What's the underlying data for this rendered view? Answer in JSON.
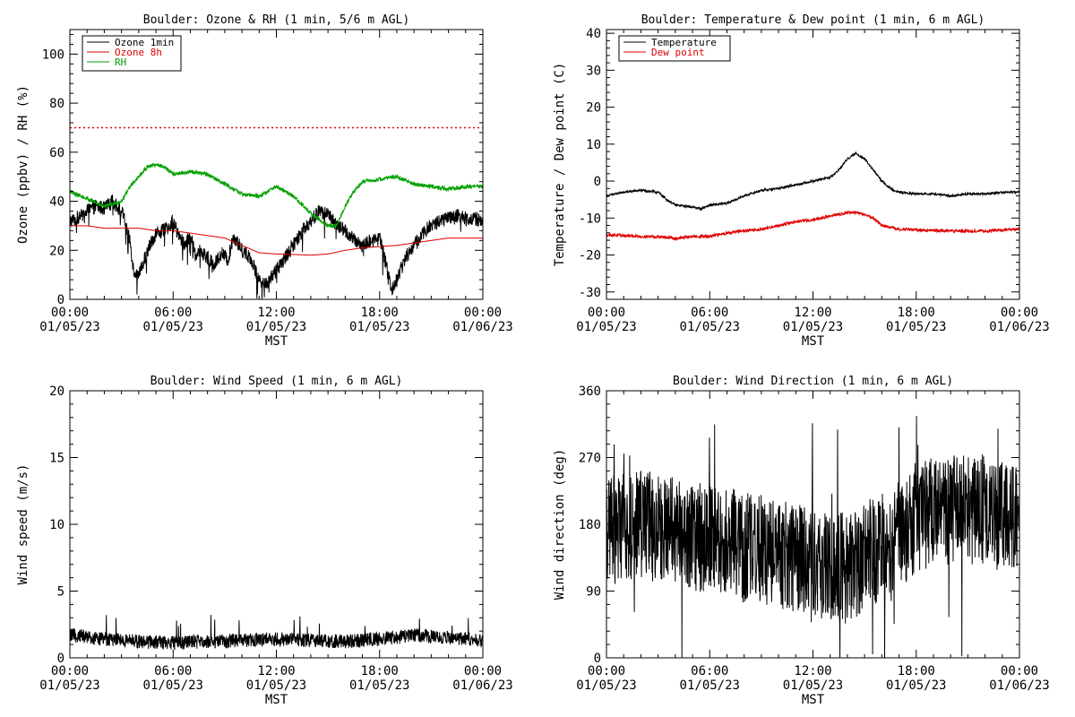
{
  "page": {
    "background": "#ffffff",
    "colors": {
      "black": "#000000",
      "red": "#e00000",
      "green": "#00a000"
    }
  },
  "chart_data": [
    {
      "id": "ozone-rh",
      "type": "line",
      "title": "Boulder: Ozone & RH (1 min, 5/6 m AGL)",
      "xlabel": "MST",
      "ylabel": "Ozone (ppbv) / RH (%)",
      "ylim": [
        0,
        110
      ],
      "yticks": [
        0,
        20,
        40,
        60,
        80,
        100
      ],
      "xlim": [
        "01/05/23 00:00",
        "01/06/23 00:00"
      ],
      "xticks": [
        {
          "time": "00:00",
          "date": "01/05/23"
        },
        {
          "time": "06:00",
          "date": "01/05/23"
        },
        {
          "time": "12:00",
          "date": "01/05/23"
        },
        {
          "time": "18:00",
          "date": "01/05/23"
        },
        {
          "time": "00:00",
          "date": "01/06/23"
        }
      ],
      "legend": {
        "placement": "top-left"
      },
      "reference_line": {
        "y": 70,
        "color": "#e00000",
        "style": "dotted"
      },
      "series": [
        {
          "name": "Ozone 1min",
          "color": "#000000",
          "noise": 3,
          "points": [
            [
              0,
              32
            ],
            [
              0.5,
              33
            ],
            [
              1,
              36
            ],
            [
              1.5,
              38
            ],
            [
              2,
              37
            ],
            [
              2.5,
              40
            ],
            [
              3,
              36
            ],
            [
              3.2,
              32
            ],
            [
              3.5,
              24
            ],
            [
              3.7,
              12
            ],
            [
              4,
              9
            ],
            [
              4.5,
              20
            ],
            [
              5,
              27
            ],
            [
              5.5,
              28
            ],
            [
              6,
              32
            ],
            [
              6.3,
              26
            ],
            [
              6.7,
              22
            ],
            [
              7,
              27
            ],
            [
              7.3,
              18
            ],
            [
              7.6,
              20
            ],
            [
              8,
              17
            ],
            [
              8.4,
              14
            ],
            [
              8.8,
              19
            ],
            [
              9.2,
              16
            ],
            [
              9.5,
              26
            ],
            [
              10,
              20
            ],
            [
              10.5,
              17
            ],
            [
              11,
              8
            ],
            [
              11.5,
              7
            ],
            [
              12,
              12
            ],
            [
              12.5,
              17
            ],
            [
              13,
              22
            ],
            [
              13.5,
              28
            ],
            [
              14,
              32
            ],
            [
              14.5,
              36
            ],
            [
              15,
              35
            ],
            [
              15.5,
              30
            ],
            [
              16,
              28
            ],
            [
              16.5,
              24
            ],
            [
              17,
              22
            ],
            [
              17.5,
              24
            ],
            [
              18,
              25
            ],
            [
              18.2,
              20
            ],
            [
              18.5,
              10
            ],
            [
              18.7,
              4
            ],
            [
              19,
              8
            ],
            [
              19.5,
              17
            ],
            [
              20,
              22
            ],
            [
              20.5,
              27
            ],
            [
              21,
              30
            ],
            [
              21.5,
              32
            ],
            [
              22,
              33
            ],
            [
              22.5,
              34
            ],
            [
              23,
              33
            ],
            [
              23.5,
              33
            ],
            [
              24,
              32
            ]
          ]
        },
        {
          "name": "Ozone 8h",
          "color": "#e00000",
          "noise": 0,
          "points": [
            [
              0,
              30
            ],
            [
              1,
              30
            ],
            [
              2,
              29
            ],
            [
              3,
              29
            ],
            [
              4,
              29
            ],
            [
              5,
              28
            ],
            [
              6,
              28
            ],
            [
              7,
              27
            ],
            [
              8,
              26
            ],
            [
              9,
              25
            ],
            [
              10,
              22
            ],
            [
              11,
              19
            ],
            [
              12,
              18.5
            ],
            [
              13,
              18.3
            ],
            [
              14,
              18
            ],
            [
              15,
              18.5
            ],
            [
              16,
              20
            ],
            [
              17,
              21
            ],
            [
              18,
              21.5
            ],
            [
              19,
              22
            ],
            [
              20,
              23
            ],
            [
              21,
              24
            ],
            [
              22,
              25
            ],
            [
              23,
              25
            ],
            [
              24,
              25
            ]
          ]
        },
        {
          "name": "RH",
          "color": "#00a000",
          "noise": 0.8,
          "points": [
            [
              0,
              44
            ],
            [
              1,
              41
            ],
            [
              2,
              38
            ],
            [
              3,
              40
            ],
            [
              3.5,
              46
            ],
            [
              4,
              50
            ],
            [
              4.5,
              54
            ],
            [
              5,
              55
            ],
            [
              5.5,
              54
            ],
            [
              6,
              51
            ],
            [
              7,
              52
            ],
            [
              8,
              51
            ],
            [
              9,
              47
            ],
            [
              10,
              43
            ],
            [
              11,
              42
            ],
            [
              12,
              46
            ],
            [
              13,
              42
            ],
            [
              14,
              35
            ],
            [
              15,
              30
            ],
            [
              15.5,
              30
            ],
            [
              16,
              38
            ],
            [
              16.5,
              44
            ],
            [
              17,
              48
            ],
            [
              18,
              49
            ],
            [
              19,
              50
            ],
            [
              20,
              47
            ],
            [
              21,
              46
            ],
            [
              22,
              45
            ],
            [
              23,
              46
            ],
            [
              24,
              46
            ]
          ]
        }
      ]
    },
    {
      "id": "temperature",
      "type": "line",
      "title": "Boulder: Temperature & Dew point (1 min, 6 m AGL)",
      "xlabel": "MST",
      "ylabel": "Temperature / Dew point (C)",
      "ylim": [
        -32,
        41
      ],
      "yticks": [
        -30,
        -20,
        -10,
        0,
        10,
        20,
        30,
        40
      ],
      "xlim": [
        "01/05/23 00:00",
        "01/06/23 00:00"
      ],
      "xticks": [
        {
          "time": "00:00",
          "date": "01/05/23"
        },
        {
          "time": "06:00",
          "date": "01/05/23"
        },
        {
          "time": "12:00",
          "date": "01/05/23"
        },
        {
          "time": "18:00",
          "date": "01/05/23"
        },
        {
          "time": "00:00",
          "date": "01/06/23"
        }
      ],
      "legend": {
        "placement": "top-left"
      },
      "series": [
        {
          "name": "Temperature",
          "color": "#000000",
          "noise": 0.3,
          "points": [
            [
              0,
              -4
            ],
            [
              1,
              -3
            ],
            [
              2,
              -2.5
            ],
            [
              3,
              -3
            ],
            [
              3.5,
              -5
            ],
            [
              4,
              -6.5
            ],
            [
              5,
              -7
            ],
            [
              5.5,
              -7.5
            ],
            [
              6,
              -6.5
            ],
            [
              7,
              -6
            ],
            [
              8,
              -4
            ],
            [
              9,
              -2.5
            ],
            [
              10,
              -2
            ],
            [
              11,
              -1
            ],
            [
              12,
              0
            ],
            [
              13,
              1
            ],
            [
              13.5,
              3
            ],
            [
              14,
              6
            ],
            [
              14.5,
              7.5
            ],
            [
              15,
              6
            ],
            [
              15.5,
              3
            ],
            [
              16,
              0
            ],
            [
              16.5,
              -2
            ],
            [
              17,
              -3
            ],
            [
              18,
              -3.5
            ],
            [
              19,
              -3.5
            ],
            [
              20,
              -4
            ],
            [
              21,
              -3.5
            ],
            [
              22,
              -3.5
            ],
            [
              23,
              -3
            ],
            [
              24,
              -3
            ]
          ]
        },
        {
          "name": "Dew point",
          "color": "#e00000",
          "noise": 0.4,
          "points": [
            [
              0,
              -14.5
            ],
            [
              2,
              -15
            ],
            [
              3,
              -15
            ],
            [
              4,
              -15.5
            ],
            [
              5,
              -15
            ],
            [
              6,
              -15
            ],
            [
              7,
              -14
            ],
            [
              8,
              -13.5
            ],
            [
              9,
              -13
            ],
            [
              10,
              -12
            ],
            [
              11,
              -11
            ],
            [
              12,
              -10.5
            ],
            [
              13,
              -9.5
            ],
            [
              14,
              -8.5
            ],
            [
              14.5,
              -8.5
            ],
            [
              15,
              -9
            ],
            [
              15.5,
              -10
            ],
            [
              16,
              -12
            ],
            [
              17,
              -13
            ],
            [
              18,
              -13.2
            ],
            [
              20,
              -13.5
            ],
            [
              22,
              -13.5
            ],
            [
              24,
              -13
            ]
          ]
        }
      ]
    },
    {
      "id": "wind-speed",
      "type": "line",
      "title": "Boulder: Wind Speed (1 min, 6 m AGL)",
      "xlabel": "MST",
      "ylabel": "Wind speed (m/s)",
      "ylim": [
        0,
        20
      ],
      "yticks": [
        0,
        5,
        10,
        15,
        20
      ],
      "xlim": [
        "01/05/23 00:00",
        "01/06/23 00:00"
      ],
      "xticks": [
        {
          "time": "00:00",
          "date": "01/05/23"
        },
        {
          "time": "06:00",
          "date": "01/05/23"
        },
        {
          "time": "12:00",
          "date": "01/05/23"
        },
        {
          "time": "18:00",
          "date": "01/05/23"
        },
        {
          "time": "00:00",
          "date": "01/06/23"
        }
      ],
      "series": [
        {
          "name": "",
          "color": "#000000",
          "noise": 0.75,
          "points": [
            [
              0,
              1.5
            ],
            [
              2,
              1.2
            ],
            [
              4,
              1.0
            ],
            [
              6,
              0.9
            ],
            [
              8,
              1.0
            ],
            [
              10,
              1.1
            ],
            [
              12,
              1.2
            ],
            [
              14,
              1.1
            ],
            [
              16,
              1.0
            ],
            [
              18,
              1.2
            ],
            [
              20,
              1.5
            ],
            [
              22,
              1.3
            ],
            [
              24,
              1.1
            ]
          ]
        }
      ]
    },
    {
      "id": "wind-direction",
      "type": "line",
      "title": "Boulder: Wind Direction (1 min, 6 m AGL)",
      "xlabel": "MST",
      "ylabel": "Wind direction (deg)",
      "ylim": [
        0,
        360
      ],
      "yticks": [
        0,
        90,
        180,
        270,
        360
      ],
      "xlim": [
        "01/05/23 00:00",
        "01/06/23 00:00"
      ],
      "xticks": [
        {
          "time": "00:00",
          "date": "01/05/23"
        },
        {
          "time": "06:00",
          "date": "01/05/23"
        },
        {
          "time": "12:00",
          "date": "01/05/23"
        },
        {
          "time": "18:00",
          "date": "01/05/23"
        },
        {
          "time": "00:00",
          "date": "01/06/23"
        }
      ],
      "series": [
        {
          "name": "",
          "color": "#000000",
          "noise": 75,
          "points": [
            [
              0,
              170
            ],
            [
              2,
              180
            ],
            [
              4,
              170
            ],
            [
              6,
              160
            ],
            [
              8,
              150
            ],
            [
              10,
              140
            ],
            [
              12,
              130
            ],
            [
              14,
              120
            ],
            [
              16,
              150
            ],
            [
              18,
              190
            ],
            [
              20,
              200
            ],
            [
              22,
              200
            ],
            [
              24,
              180
            ]
          ]
        }
      ]
    }
  ]
}
